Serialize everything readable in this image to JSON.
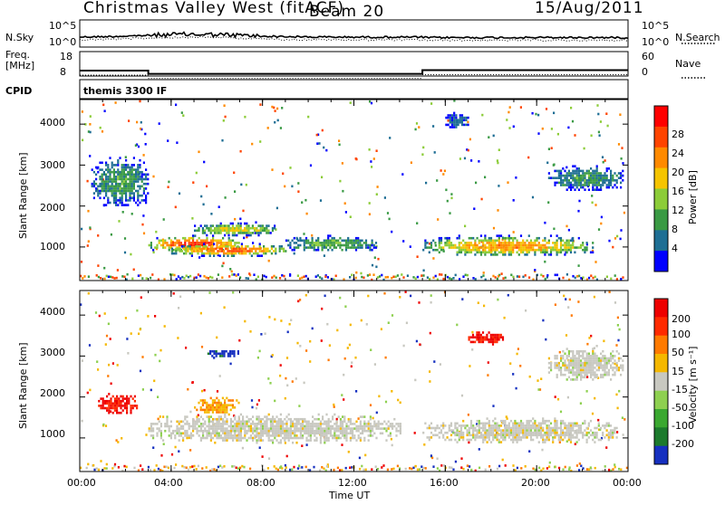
{
  "header": {
    "station": "Christmas Valley West (fitACF)",
    "beam": "Beam 20",
    "date": "15/Aug/2011"
  },
  "panels": {
    "nsky": {
      "label": "N.Sky",
      "left_ticks": [
        "10^5",
        "10^0"
      ],
      "right_ticks": [
        "10^5",
        "10^0"
      ],
      "right_label": "N.Search"
    },
    "freq": {
      "label_1": "Freq.",
      "label_2": "[MHz]",
      "left_ticks": [
        "18",
        "8"
      ],
      "right_ticks": [
        "60",
        "0"
      ],
      "right_label": "Nave"
    },
    "cpid": {
      "label": "CPID",
      "text": "themis 3300 IF"
    },
    "power": {
      "ylabel": "Slant Range [km]",
      "yticks": [
        "4000",
        "3000",
        "2000",
        "1000"
      ],
      "colorbar_label": "Power [dB]",
      "colorbar_ticks": [
        "28",
        "24",
        "20",
        "16",
        "12",
        "8",
        "4"
      ],
      "colors": [
        "#0000ff",
        "#1e6e94",
        "#3a9a44",
        "#8ccc38",
        "#f5c400",
        "#ff8a00",
        "#ff4400",
        "#ff0000"
      ]
    },
    "velocity": {
      "ylabel": "Slant Range [km]",
      "yticks": [
        "4000",
        "3000",
        "2000",
        "1000"
      ],
      "colorbar_label": "Velocity [m s⁻¹]",
      "colorbar_ticks": [
        "200",
        "100",
        "50",
        "15",
        "-15",
        "-50",
        "-100",
        "-200"
      ],
      "colors": [
        "#1630c0",
        "#1c7a2c",
        "#3aa830",
        "#8ed050",
        "#c8c8c0",
        "#f5b800",
        "#ff7a00",
        "#ff2a00",
        "#ee0000"
      ]
    }
  },
  "xaxis": {
    "label": "Time UT",
    "ticks": [
      "00:00",
      "04:00",
      "08:00",
      "12:00",
      "16:00",
      "20:00",
      "00:00"
    ]
  },
  "chart_data": {
    "type": "heatmap",
    "title": "Christmas Valley West (fitACF) Beam 20 15/Aug/2011",
    "xlabel": "Time UT",
    "ylabel": "Slant Range [km]",
    "xlim": [
      "00:00",
      "24:00"
    ],
    "ylim": [
      180,
      4600
    ],
    "frequency_mhz": [
      {
        "from": "00:00",
        "to": "03:00",
        "value": 10.5
      },
      {
        "from": "03:00",
        "to": "15:00",
        "value": 9.0
      },
      {
        "from": "15:00",
        "to": "24:00",
        "value": 10.7
      }
    ],
    "power_db_regions": [
      {
        "t": [
          0.5,
          3.0
        ],
        "r": [
          2000,
          3200
        ],
        "level_db": 10
      },
      {
        "t": [
          3.0,
          7.0
        ],
        "r": [
          900,
          1300
        ],
        "level_db": 28
      },
      {
        "t": [
          4.0,
          9.0
        ],
        "r": [
          800,
          1100
        ],
        "level_db": 26
      },
      {
        "t": [
          5.0,
          8.5
        ],
        "r": [
          1300,
          1600
        ],
        "level_db": 18
      },
      {
        "t": [
          9.0,
          13.0
        ],
        "r": [
          900,
          1300
        ],
        "level_db": 12
      },
      {
        "t": [
          15.0,
          22.5
        ],
        "r": [
          800,
          1300
        ],
        "level_db": 22
      },
      {
        "t": [
          16.0,
          17.0
        ],
        "r": [
          3900,
          4300
        ],
        "level_db": 6
      },
      {
        "t": [
          20.5,
          23.8
        ],
        "r": [
          2400,
          3000
        ],
        "level_db": 10
      }
    ],
    "velocity_ms_regions": [
      {
        "t": [
          0.8,
          2.5
        ],
        "r": [
          1600,
          2100
        ],
        "value": -200
      },
      {
        "t": [
          5.5,
          7.0
        ],
        "r": [
          3000,
          3200
        ],
        "value": 200
      },
      {
        "t": [
          5.0,
          7.0
        ],
        "r": [
          1600,
          2000
        ],
        "value": -50
      },
      {
        "t": [
          3.0,
          14.0
        ],
        "r": [
          900,
          1600
        ],
        "value": 0
      },
      {
        "t": [
          15.0,
          23.5
        ],
        "r": [
          900,
          1500
        ],
        "value": 0
      },
      {
        "t": [
          17.0,
          18.5
        ],
        "r": [
          3300,
          3600
        ],
        "value": -200
      },
      {
        "t": [
          20.5,
          23.8
        ],
        "r": [
          2400,
          3200
        ],
        "value": 0
      }
    ]
  }
}
